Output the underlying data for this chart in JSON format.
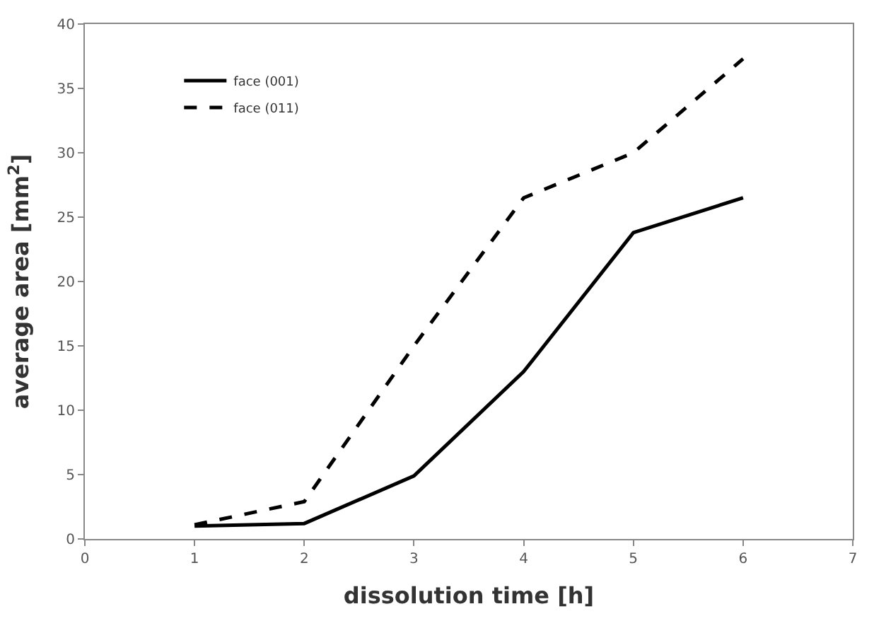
{
  "chart_data": {
    "type": "line",
    "xlabel": "dissolution time [h]",
    "ylabel": "average area [mm$^{2}$]",
    "x": [
      1,
      2,
      3,
      4,
      5,
      6
    ],
    "series": [
      {
        "name": "face (001)",
        "color": "#000000",
        "line_style": "solid",
        "values": [
          1.0,
          1.2,
          4.9,
          13,
          23.8,
          26.5
        ]
      },
      {
        "name": "face (011)",
        "color": "#000000",
        "line_style": "dashed",
        "values": [
          1.1,
          2.9,
          15,
          26.5,
          30,
          37.3
        ]
      }
    ],
    "xlim": [
      0,
      7
    ],
    "xticks": [
      0,
      1,
      2,
      3,
      4,
      5,
      6,
      7
    ],
    "ylim": [
      0,
      40
    ],
    "yticks": [
      0,
      5,
      10,
      15,
      20,
      25,
      30,
      35,
      40
    ],
    "legend": "top left",
    "marker": "none"
  }
}
